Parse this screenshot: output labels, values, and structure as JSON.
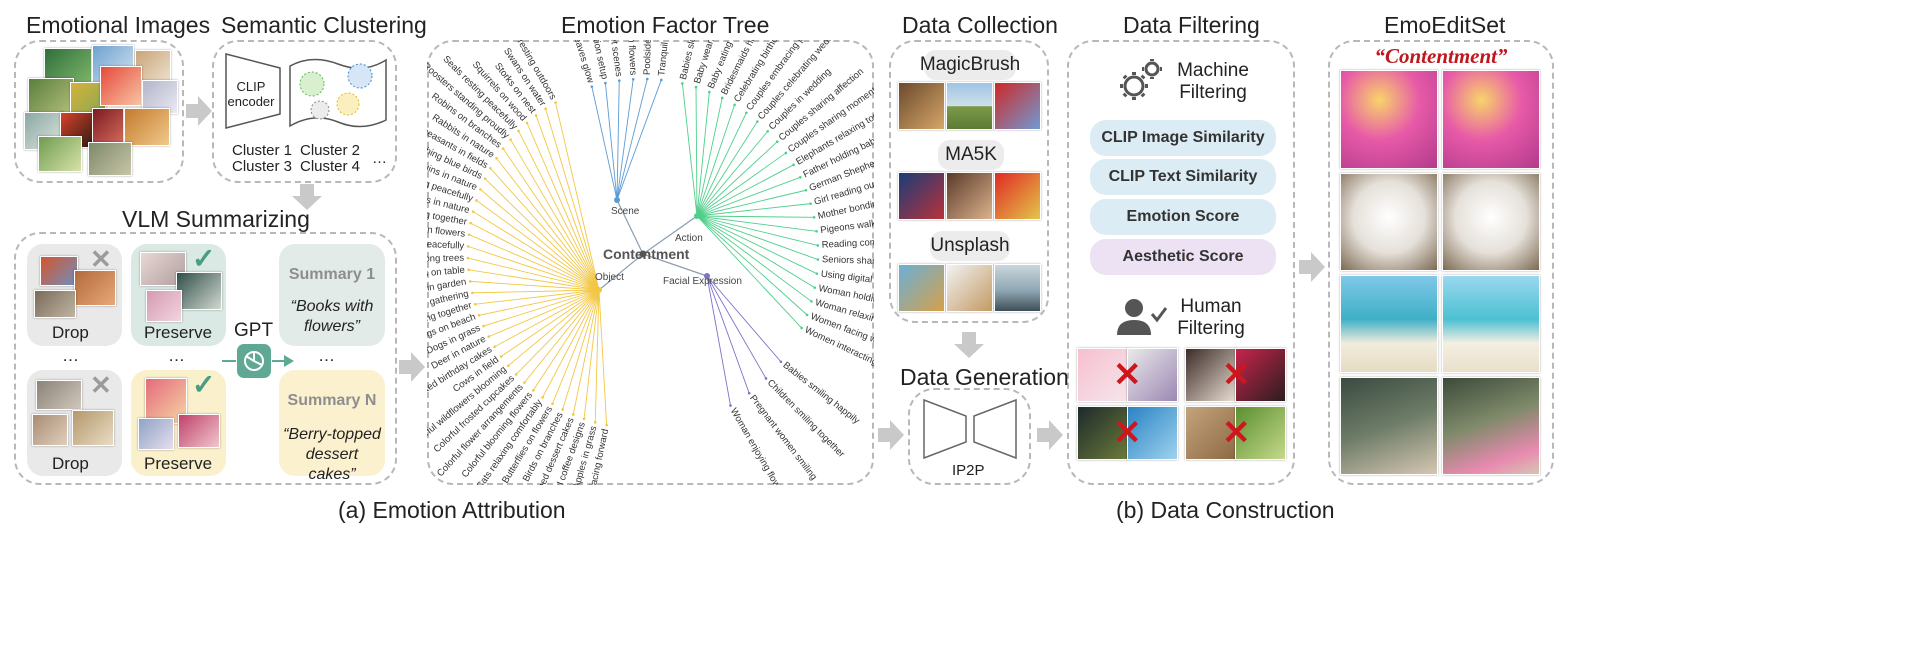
{
  "attribution": {
    "emotional_images_title": "Emotional Images",
    "semantic_clustering_title": "Semantic Clustering",
    "clip_encoder_label": "CLIP encoder",
    "clusters": [
      "Cluster 1",
      "Cluster 2",
      "Cluster 3",
      "Cluster 4"
    ],
    "cluster_ellipsis": "…",
    "vlm_title": "VLM Summarizing",
    "drop_label": "Drop",
    "preserve_label": "Preserve",
    "ellipsis": "…",
    "gpt_label": "GPT",
    "summary1_title": "Summary 1",
    "summary1_text": "“Books with flowers”",
    "summaryN_title": "Summary N",
    "summaryN_text": "“Berry-topped dessert cakes”",
    "tree_title": "Emotion Factor Tree",
    "caption": "(a) Emotion Attribution"
  },
  "tree": {
    "center": "Contentment",
    "branches": {
      "scene": "Scene",
      "action": "Action",
      "object": "Object",
      "facial": "Facial Expression"
    },
    "scene_leaves": [
      "Autumn leaves glow",
      "Beach relaxation setup",
      "Beach sunset scenes",
      "Colorful garden flowers",
      "Poolside lounge chairs",
      "Tranquil water reflections"
    ],
    "action_leaves": [
      "Babies sleeping peacefully",
      "Baby wearing Santa",
      "Baby eating cake",
      "Bridesmaids holding flowers",
      "Celebrating birthday cakes",
      "Couples embracing pregnancy",
      "Couples celebrating wedding",
      "Couples in wedding",
      "Couples sharing affection",
      "Couples sharing moments",
      "Elephants relaxing together",
      "Father holding baby",
      "German Shepherd lying",
      "Girl reading outdoors",
      "Mother bonding child",
      "Pigeons walking outdoors",
      "Reading comfortably indoors",
      "Seniors sharing moments",
      "Using digital devices",
      "Woman holding flowers",
      "Woman relaxing outdoors",
      "Women facing water",
      "Women interacting plants"
    ],
    "object_leaves": [
      "Tigers resting outdoors",
      "Swans on water",
      "Storks on nest",
      "Squirrels on wood",
      "Seals resting peacefully",
      "Roosters standing proudly",
      "Robins on branches",
      "Rabbits in nature",
      "Pheasants in fields",
      "Perching blue birds",
      "Penguins in nature",
      "Pandas resting peacefully",
      "Owls in nature",
      "Monkeys grooming together",
      "Insects on flowers",
      "Horses grazing peacefully",
      "Giraffes among trees",
      "Flowers on table",
      "Flowers in garden",
      "Family outdoor gathering",
      "Dogs resting together",
      "Dogs on beach",
      "Dogs in grass",
      "Deer in nature",
      "Decorated birthday cakes",
      "Cows in field",
      "Colorful wildflowers blooming",
      "Colorful frosted cupcakes",
      "Colorful flower arrangements",
      "Colorful blooming flowers",
      "Cats relaxing comfortably",
      "Butterflies on flowers",
      "Birds on branches",
      "Berry-topped dessert cakes",
      "Beautiful coffee designs",
      "Apples in grass",
      "Alpacas facing forward"
    ],
    "facial_leaves": [
      "Babies smiling happily",
      "Children smiling together",
      "Pregnant women smiling",
      "Woman enjoying flowers"
    ]
  },
  "construction": {
    "data_collection_title": "Data Collection",
    "sources": [
      "MagicBrush",
      "MA5K",
      "Unsplash"
    ],
    "data_generation_title": "Data Generation",
    "ip2p_label": "IP2P",
    "data_filtering_title": "Data Filtering",
    "machine_filtering": "Machine Filtering",
    "filters": [
      "CLIP Image Similarity",
      "CLIP Text Similarity",
      "Emotion Score",
      "Aesthetic Score"
    ],
    "human_filtering": "Human Filtering",
    "emoeditset_title": "EmoEditSet",
    "emotion_word": "“Contentment”",
    "caption": "(b) Data Construction"
  },
  "colors": {
    "scene": "#5b9bd5",
    "action": "#4fcf8a",
    "object": "#f2c744",
    "facial": "#7b72c9",
    "summary1_bg": "#e3ebe8",
    "summaryN_bg": "#fbf1cf",
    "preserve1_bg": "#dbe9e5",
    "preserveN_bg": "#fbf0cc",
    "drop_bg": "#e9e9e9",
    "filter_blue": "#dcecf4",
    "filter_purple": "#ece2f3",
    "arrow": "#c9c9c9",
    "check": "#4a9c84",
    "red": "#c0161d"
  }
}
